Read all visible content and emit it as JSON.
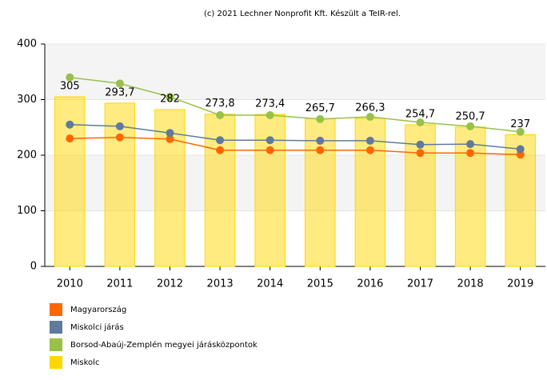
{
  "chart_data": {
    "type": "combo",
    "title": "(c) 2021 Lechner Nonprofit Kft. Készült a TeIR-rel.",
    "categories": [
      "2010",
      "2011",
      "2012",
      "2013",
      "2014",
      "2015",
      "2016",
      "2017",
      "2018",
      "2019"
    ],
    "ylim": [
      0,
      400
    ],
    "yticks": [
      0,
      100,
      200,
      300,
      400
    ],
    "grid": true,
    "series": [
      {
        "name": "Magyarország",
        "type": "line",
        "color": "#ff6600",
        "values": [
          230,
          232,
          229,
          209,
          209,
          209,
          209,
          204,
          204,
          201
        ]
      },
      {
        "name": "Miskolci járás",
        "type": "line",
        "color": "#5f7a9a",
        "values": [
          255,
          252,
          240,
          227,
          227,
          226,
          226,
          219,
          220,
          211
        ]
      },
      {
        "name": "Borsod-Abaúj-Zemplén megyei járásközpontok",
        "type": "line",
        "color": "#99c14a",
        "values": [
          340,
          329,
          305,
          272,
          272,
          265,
          269,
          259,
          252,
          242
        ]
      },
      {
        "name": "Miskolc",
        "type": "bar",
        "color": "#ffd700",
        "values": [
          305,
          293.7,
          282,
          273.8,
          273.4,
          265.7,
          266.3,
          254.7,
          250.7,
          237
        ],
        "value_labels": [
          "305",
          "293,7",
          "282",
          "273,8",
          "273,4",
          "265,7",
          "266,3",
          "254,7",
          "250,7",
          "237"
        ]
      }
    ]
  }
}
